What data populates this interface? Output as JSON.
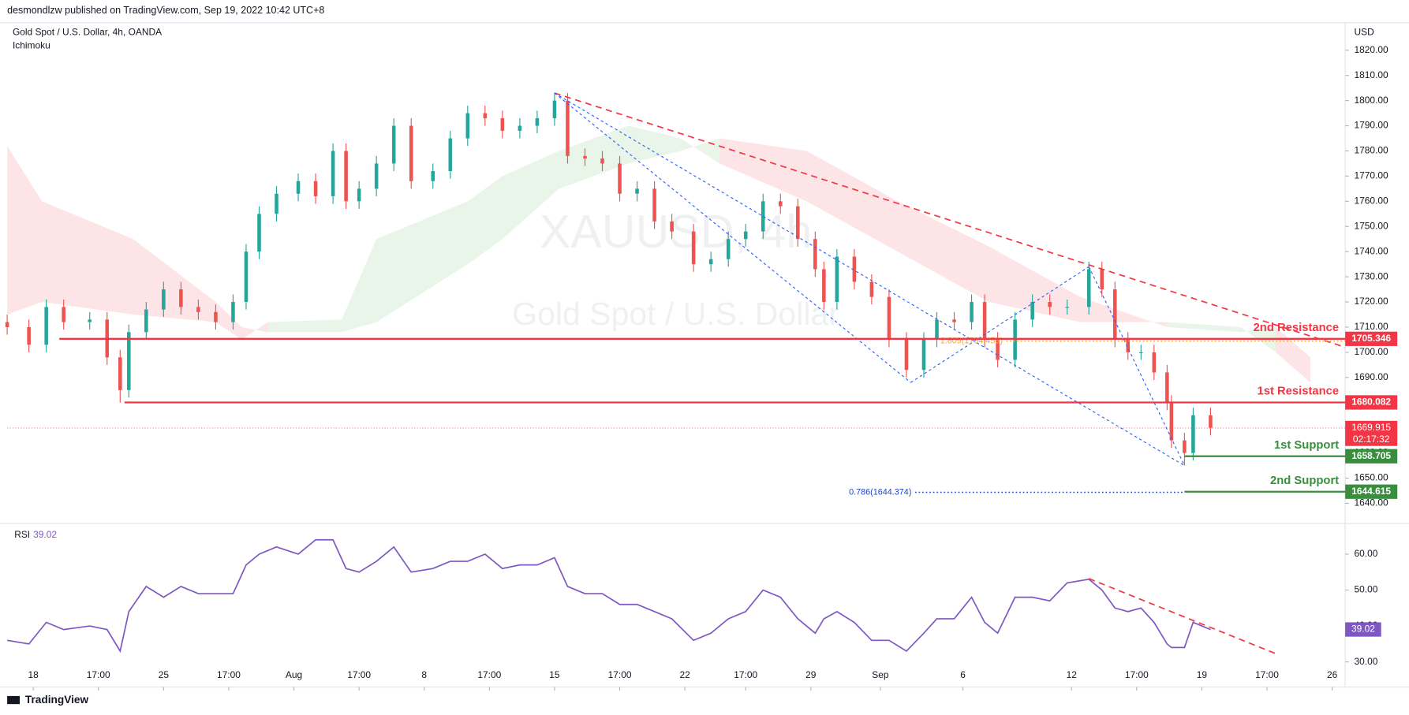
{
  "header": {
    "publisher": "desmondlzw published on TradingView.com, Sep 19, 2022 10:42 UTC+8",
    "symbol": "Gold Spot / U.S. Dollar, 4h, OANDA",
    "indicator": "Ichimoku",
    "currency": "USD",
    "watermark": "XAUUSD, 4h",
    "watermark_sub": "Gold Spot / U.S. Dollar"
  },
  "footer": {
    "brand": "TradingView"
  },
  "chart_data": [
    {
      "type": "candlestick",
      "up_color": "#26a69a",
      "down_color": "#ef5350",
      "xlim": [
        0,
        308
      ],
      "ylim": [
        1633,
        1831
      ],
      "yticks": [
        {
          "value": 1640,
          "label": "1640.00"
        },
        {
          "value": 1650,
          "label": "1650.00"
        },
        {
          "value": 1660,
          "label": "1660.00"
        },
        {
          "value": 1670,
          "label": "1670.00"
        },
        {
          "value": 1680,
          "label": "1680.00"
        },
        {
          "value": 1690,
          "label": "1690.00"
        },
        {
          "value": 1700,
          "label": "1700.00"
        },
        {
          "value": 1710,
          "label": "1710.00"
        },
        {
          "value": 1720,
          "label": "1720.00"
        },
        {
          "value": 1730,
          "label": "1730.00"
        },
        {
          "value": 1740,
          "label": "1740.00"
        },
        {
          "value": 1750,
          "label": "1750.00"
        },
        {
          "value": 1760,
          "label": "1760.00"
        },
        {
          "value": 1770,
          "label": "1770.00"
        },
        {
          "value": 1780,
          "label": "1780.00"
        },
        {
          "value": 1790,
          "label": "1790.00"
        },
        {
          "value": 1800,
          "label": "1800.00"
        },
        {
          "value": 1810,
          "label": "1810.00"
        },
        {
          "value": 1820,
          "label": "1820.00"
        }
      ],
      "x": [
        0,
        5,
        9,
        13,
        19,
        23,
        26,
        28,
        32,
        36,
        40,
        44,
        48,
        52,
        55,
        58,
        62,
        67,
        71,
        75,
        78,
        81,
        85,
        89,
        93,
        98,
        102,
        106,
        110,
        114,
        118,
        122,
        126,
        129,
        133,
        137,
        141,
        145,
        149,
        153,
        158,
        162,
        166,
        170,
        174,
        178,
        182,
        186,
        188,
        191,
        195,
        199,
        203,
        207,
        211,
        214,
        218,
        222,
        225,
        228,
        232,
        236,
        240,
        244,
        249,
        252,
        255,
        258,
        261,
        264,
        267,
        268,
        271,
        273,
        277
      ],
      "open": [
        1712,
        1710,
        1703,
        1718,
        1712,
        1713,
        1698,
        1685,
        1708,
        1717,
        1725,
        1718,
        1716,
        1712,
        1720,
        1740,
        1755,
        1763,
        1768,
        1762,
        1780,
        1760,
        1765,
        1775,
        1790,
        1768,
        1772,
        1785,
        1795,
        1793,
        1788,
        1790,
        1793,
        1800,
        1778,
        1777,
        1775,
        1763,
        1765,
        1752,
        1748,
        1735,
        1737,
        1745,
        1748,
        1760,
        1758,
        1745,
        1733,
        1720,
        1738,
        1728,
        1722,
        1705,
        1693,
        1705,
        1713,
        1712,
        1720,
        1705,
        1697,
        1713,
        1720,
        1718,
        1718,
        1733,
        1725,
        1705,
        1700,
        1700,
        1692,
        1680,
        1665,
        1660,
        1675
      ],
      "high": [
        1715,
        1713,
        1721,
        1721,
        1716,
        1716,
        1701,
        1711,
        1720,
        1728,
        1728,
        1721,
        1719,
        1723,
        1743,
        1758,
        1766,
        1771,
        1771,
        1783,
        1783,
        1768,
        1778,
        1793,
        1793,
        1775,
        1788,
        1798,
        1798,
        1796,
        1793,
        1796,
        1803,
        1803,
        1781,
        1780,
        1778,
        1768,
        1768,
        1755,
        1751,
        1740,
        1748,
        1751,
        1763,
        1763,
        1761,
        1748,
        1736,
        1741,
        1741,
        1731,
        1725,
        1708,
        1708,
        1716,
        1716,
        1723,
        1723,
        1708,
        1716,
        1723,
        1723,
        1721,
        1736,
        1736,
        1728,
        1708,
        1703,
        1703,
        1695,
        1683,
        1668,
        1678,
        1678
      ],
      "low": [
        1707,
        1700,
        1700,
        1709,
        1709,
        1695,
        1680,
        1682,
        1705,
        1714,
        1715,
        1713,
        1709,
        1709,
        1717,
        1737,
        1752,
        1760,
        1759,
        1759,
        1757,
        1757,
        1762,
        1772,
        1765,
        1765,
        1769,
        1782,
        1790,
        1785,
        1785,
        1787,
        1790,
        1775,
        1774,
        1772,
        1760,
        1760,
        1749,
        1745,
        1732,
        1732,
        1734,
        1742,
        1745,
        1755,
        1742,
        1730,
        1717,
        1717,
        1725,
        1719,
        1702,
        1690,
        1690,
        1702,
        1709,
        1709,
        1702,
        1694,
        1694,
        1710,
        1715,
        1715,
        1715,
        1722,
        1702,
        1697,
        1697,
        1689,
        1677,
        1662,
        1655,
        1657,
        1667
      ],
      "close": [
        1710,
        1703,
        1718,
        1712,
        1713,
        1698,
        1685,
        1708,
        1717,
        1725,
        1718,
        1716,
        1712,
        1720,
        1740,
        1755,
        1763,
        1768,
        1762,
        1780,
        1760,
        1765,
        1775,
        1790,
        1768,
        1772,
        1785,
        1795,
        1793,
        1788,
        1790,
        1793,
        1800,
        1778,
        1777,
        1775,
        1763,
        1765,
        1752,
        1748,
        1735,
        1737,
        1745,
        1748,
        1760,
        1758,
        1745,
        1733,
        1720,
        1738,
        1728,
        1722,
        1705,
        1693,
        1705,
        1713,
        1712,
        1720,
        1705,
        1697,
        1713,
        1720,
        1718,
        1718,
        1733,
        1725,
        1705,
        1700,
        1700,
        1692,
        1680,
        1665,
        1660,
        1675,
        1670
      ],
      "cloud": {
        "bull_color": "#4caf50",
        "bear_color": "#f23645",
        "x": [
          0,
          8,
          29,
          48,
          54,
          60,
          77,
          85,
          106,
          114,
          127,
          143,
          155,
          164,
          184,
          205,
          226,
          247,
          267,
          284,
          292,
          300
        ],
        "span_a": [
          1715,
          1720,
          1715,
          1712,
          1705,
          1712,
          1713,
          1745,
          1760,
          1770,
          1780,
          1790,
          1785,
          1775,
          1760,
          1740,
          1720,
          1712,
          1712,
          1710,
          1700,
          1688
        ],
        "span_b": [
          1782,
          1760,
          1745,
          1720,
          1710,
          1708,
          1708,
          1712,
          1735,
          1745,
          1765,
          1775,
          1780,
          1785,
          1780,
          1760,
          1742,
          1722,
          1710,
          1708,
          1710,
          1698
        ]
      },
      "trendlines": [
        {
          "color": "#f23645",
          "x": [
            126,
            308
          ],
          "y": [
            1803,
            1702
          ]
        },
        {
          "color": "#2962ff",
          "x": [
            126,
            208
          ],
          "y": [
            1803,
            1688
          ]
        },
        {
          "color": "#2962ff",
          "x": [
            208,
            249
          ],
          "y": [
            1688,
            1734
          ]
        },
        {
          "color": "#2962ff",
          "x": [
            126,
            271
          ],
          "y": [
            1803,
            1655
          ]
        },
        {
          "color": "#2962ff",
          "x": [
            249,
            271
          ],
          "y": [
            1734,
            1655
          ]
        }
      ],
      "levels": [
        {
          "name": "2nd Resistance",
          "value": 1705.346,
          "x_start": 12,
          "color": "#f23645"
        },
        {
          "name": "1st Resistance",
          "value": 1680.082,
          "x_start": 27,
          "color": "#f23645"
        },
        {
          "name": "1st Support",
          "value": 1658.705,
          "x_start": 271,
          "color": "#388e3c"
        },
        {
          "name": "2nd Support",
          "value": 1644.615,
          "x_start": 271,
          "color": "#388e3c"
        }
      ],
      "fib": [
        {
          "label": "0.786(1644.374)",
          "value": 1644.374,
          "x_start": 209,
          "x_end": 271,
          "color": "#1848cc"
        },
        {
          "label": "1.809(1704.453)",
          "value": 1704.453,
          "x_start": 230,
          "x_end": 308,
          "color": "#f9a825"
        }
      ],
      "current": {
        "value": 1669.915,
        "countdown": "02:17:32",
        "color": "#f23645"
      }
    },
    {
      "type": "line",
      "title": "RSI",
      "current": 39.02,
      "color": "#7e57c2",
      "xlim": [
        0,
        308
      ],
      "ylim": [
        23,
        68
      ],
      "yticks": [
        {
          "value": 60,
          "label": "60.00"
        },
        {
          "value": 50,
          "label": "50.00"
        },
        {
          "value": 40,
          "label": "40.00"
        },
        {
          "value": 30,
          "label": "30.00"
        }
      ],
      "xticks": [
        {
          "value": 6,
          "label": "18"
        },
        {
          "value": 21,
          "label": "17:00"
        },
        {
          "value": 36,
          "label": "25"
        },
        {
          "value": 51,
          "label": "17:00"
        },
        {
          "value": 66,
          "label": "Aug"
        },
        {
          "value": 81,
          "label": "17:00"
        },
        {
          "value": 96,
          "label": "8"
        },
        {
          "value": 111,
          "label": "17:00"
        },
        {
          "value": 126,
          "label": "15"
        },
        {
          "value": 141,
          "label": "17:00"
        },
        {
          "value": 156,
          "label": "22"
        },
        {
          "value": 170,
          "label": "17:00"
        },
        {
          "value": 185,
          "label": "29"
        },
        {
          "value": 201,
          "label": "Sep"
        },
        {
          "value": 220,
          "label": "6"
        },
        {
          "value": 245,
          "label": "12"
        },
        {
          "value": 260,
          "label": "17:00"
        },
        {
          "value": 275,
          "label": "19"
        },
        {
          "value": 290,
          "label": "17:00"
        },
        {
          "value": 305,
          "label": "26"
        }
      ],
      "x": [
        0,
        5,
        9,
        13,
        19,
        23,
        26,
        28,
        32,
        36,
        40,
        44,
        48,
        52,
        55,
        58,
        62,
        67,
        71,
        75,
        78,
        81,
        85,
        89,
        93,
        98,
        102,
        106,
        110,
        114,
        118,
        122,
        126,
        129,
        133,
        137,
        141,
        145,
        149,
        153,
        158,
        162,
        166,
        170,
        174,
        178,
        182,
        186,
        188,
        191,
        195,
        199,
        203,
        207,
        211,
        214,
        218,
        222,
        225,
        228,
        232,
        236,
        240,
        244,
        249,
        252,
        255,
        258,
        261,
        264,
        267,
        268,
        271,
        273,
        277
      ],
      "values": [
        36,
        35,
        41,
        39,
        40,
        39,
        33,
        44,
        51,
        48,
        51,
        49,
        49,
        49,
        57,
        60,
        62,
        60,
        64,
        64,
        56,
        55,
        58,
        62,
        55,
        56,
        58,
        58,
        60,
        56,
        57,
        57,
        59,
        51,
        49,
        49,
        46,
        46,
        44,
        42,
        36,
        38,
        42,
        44,
        50,
        48,
        42,
        38,
        42,
        44,
        41,
        36,
        36,
        33,
        38,
        42,
        42,
        48,
        41,
        38,
        48,
        48,
        47,
        52,
        53,
        50,
        45,
        44,
        45,
        41,
        35,
        34,
        34,
        41,
        39
      ],
      "trendline": {
        "color": "#f23645",
        "x": [
          249,
          292
        ],
        "y": [
          53.2,
          32.3
        ]
      }
    }
  ]
}
